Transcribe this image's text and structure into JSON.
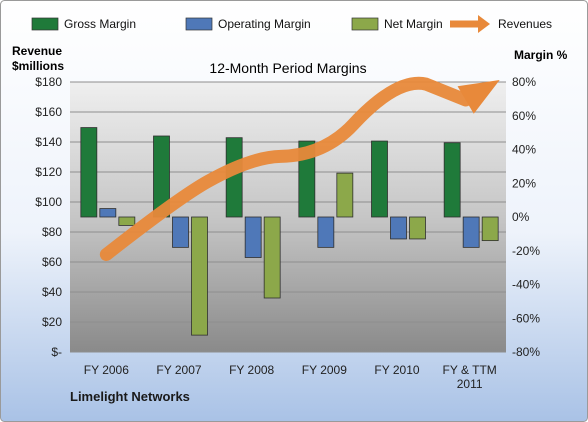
{
  "chart_data": {
    "type": "bar",
    "title": "12-Month Period Margins",
    "company": "Limelight Networks",
    "categories": [
      "FY 2006",
      "FY 2007",
      "FY 2008",
      "FY 2009",
      "FY 2010",
      "FY & TTM 2011"
    ],
    "y_left": {
      "label_line1": "Revenue",
      "label_line2": "$millions",
      "min": 0,
      "max": 180,
      "ticks": [
        "$-",
        "$20",
        "$40",
        "$60",
        "$80",
        "$100",
        "$120",
        "$140",
        "$160",
        "$180"
      ]
    },
    "y_right": {
      "label": "Margin %",
      "min": -80,
      "max": 80,
      "ticks": [
        "-80%",
        "-60%",
        "-40%",
        "-20%",
        "0%",
        "20%",
        "40%",
        "60%",
        "80%"
      ]
    },
    "series": [
      {
        "name": "Gross Margin",
        "axis": "right",
        "color": "#1f7a3a",
        "values": [
          53,
          48,
          47,
          45,
          45,
          44
        ]
      },
      {
        "name": "Operating Margin",
        "axis": "right",
        "color": "#4f78b8",
        "values": [
          5,
          -18,
          -24,
          -18,
          -13,
          -18
        ]
      },
      {
        "name": "Net Margin",
        "axis": "right",
        "color": "#8ca84a",
        "values": [
          -5,
          -70,
          -48,
          26,
          -13,
          -14
        ]
      },
      {
        "name": "Revenues",
        "axis": "left",
        "type": "line",
        "color": "#e8893a",
        "values": [
          65,
          103,
          130,
          131,
          183,
          172
        ]
      }
    ],
    "legend_placement": "top",
    "grid": true
  }
}
